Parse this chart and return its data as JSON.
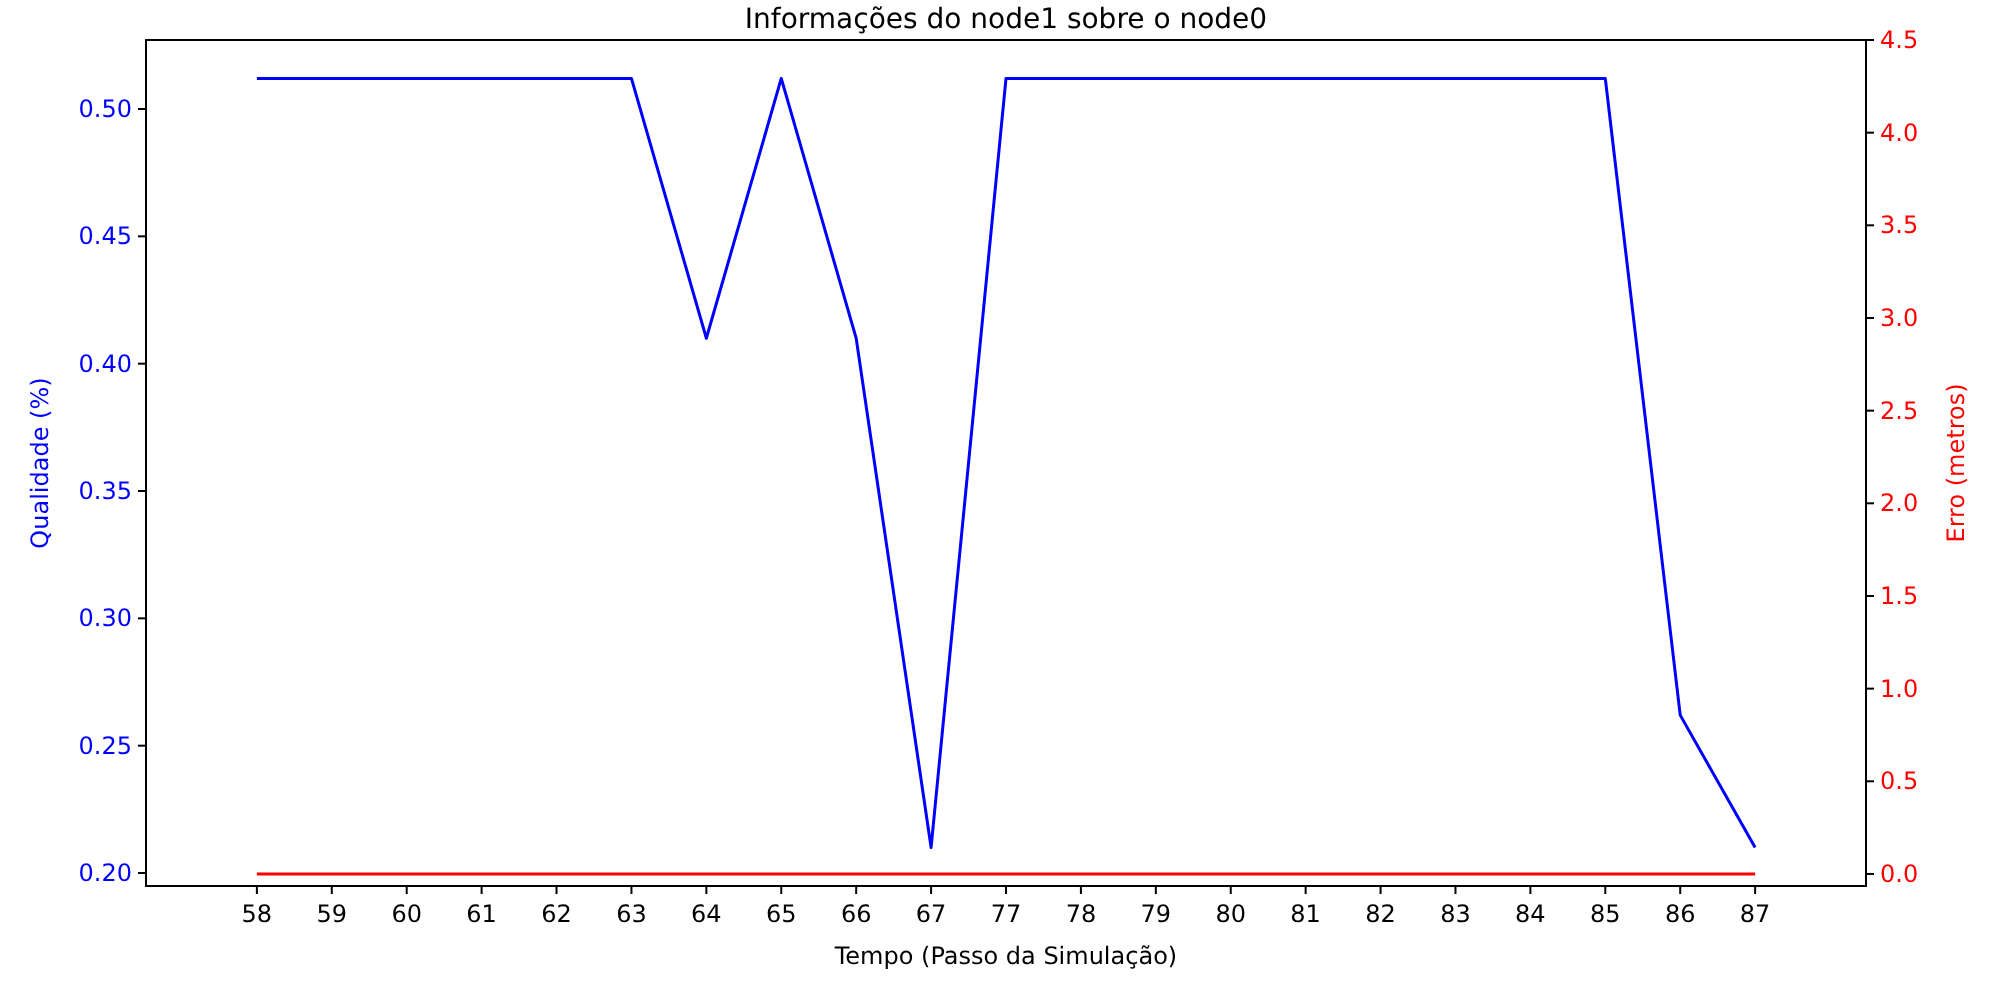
{
  "chart_data": {
    "type": "line",
    "title": "Informações do node1 sobre o node0",
    "xlabel": "Tempo (Passo da Simulação)",
    "ylabel": "Qualidade (%)",
    "y2label": "Erro (metros)",
    "categories": [
      "58",
      "59",
      "60",
      "61",
      "62",
      "63",
      "64",
      "65",
      "66",
      "67",
      "77",
      "78",
      "79",
      "80",
      "81",
      "82",
      "83",
      "84",
      "85",
      "86",
      "87"
    ],
    "series": [
      {
        "color": "#0000ff",
        "values": [
          0.512,
          0.512,
          0.512,
          0.512,
          0.512,
          0.512,
          0.41,
          0.512,
          0.41,
          0.21,
          0.512,
          0.512,
          0.512,
          0.512,
          0.512,
          0.512,
          0.512,
          0.512,
          0.512,
          0.262,
          0.21
        ]
      },
      {
        "color": "#ff0000",
        "axis": "y2",
        "values": [
          0,
          0,
          0,
          0,
          0,
          0,
          0,
          0,
          0,
          0,
          0,
          0,
          0,
          0,
          0,
          0,
          0,
          0,
          0,
          0,
          0
        ]
      }
    ],
    "ylim": [
      0.1949,
      0.5271
    ],
    "yticks": [
      {
        "value": 0.2,
        "label": "0.20"
      },
      {
        "value": 0.25,
        "label": "0.25"
      },
      {
        "value": 0.3,
        "label": "0.30"
      },
      {
        "value": 0.35,
        "label": "0.35"
      },
      {
        "value": 0.4,
        "label": "0.40"
      },
      {
        "value": 0.45,
        "label": "0.45"
      },
      {
        "value": 0.5,
        "label": "0.50"
      }
    ],
    "y2lim": [
      -0.065,
      4.5
    ],
    "y2ticks": [
      {
        "value": 0,
        "label": "0.0"
      },
      {
        "value": 0.5,
        "label": "0.5"
      },
      {
        "value": 1,
        "label": "1.0"
      },
      {
        "value": 1.5,
        "label": "1.5"
      },
      {
        "value": 2,
        "label": "2.0"
      },
      {
        "value": 2.5,
        "label": "2.5"
      },
      {
        "value": 3,
        "label": "3.0"
      },
      {
        "value": 3.5,
        "label": "3.5"
      },
      {
        "value": 4,
        "label": "4.0"
      },
      {
        "value": 4.5,
        "label": "4.5"
      }
    ],
    "grid": false,
    "marker": "none",
    "line_style": "solid"
  }
}
